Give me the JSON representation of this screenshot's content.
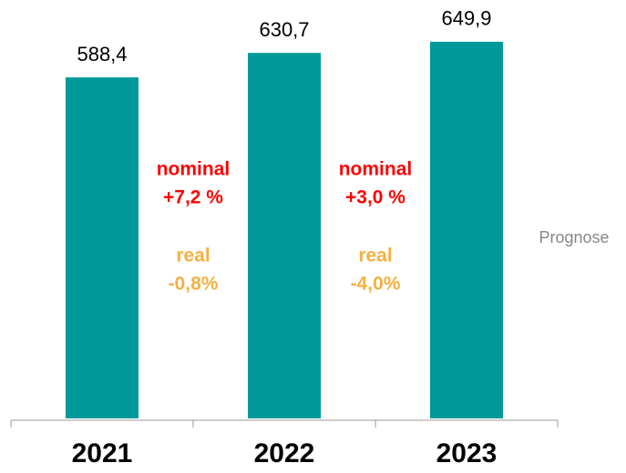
{
  "chart_data": {
    "type": "bar",
    "categories": [
      "2021",
      "2022",
      "2023"
    ],
    "values": [
      588.4,
      630.7,
      649.9
    ],
    "value_labels": [
      "588,4",
      "630,7",
      "649,9"
    ],
    "color": "#009999",
    "ylim": [
      0,
      700
    ],
    "annotations": [
      {
        "nominal_label": "nominal",
        "nominal": "+7,2 %",
        "real_label": "real",
        "real": "-0,8%"
      },
      {
        "nominal_label": "nominal",
        "nominal": "+3,0 %",
        "real_label": "real",
        "real": "-4,0%"
      }
    ],
    "nominal_color": "#ff0000",
    "real_color": "#f5b041",
    "note": "Prognose"
  }
}
